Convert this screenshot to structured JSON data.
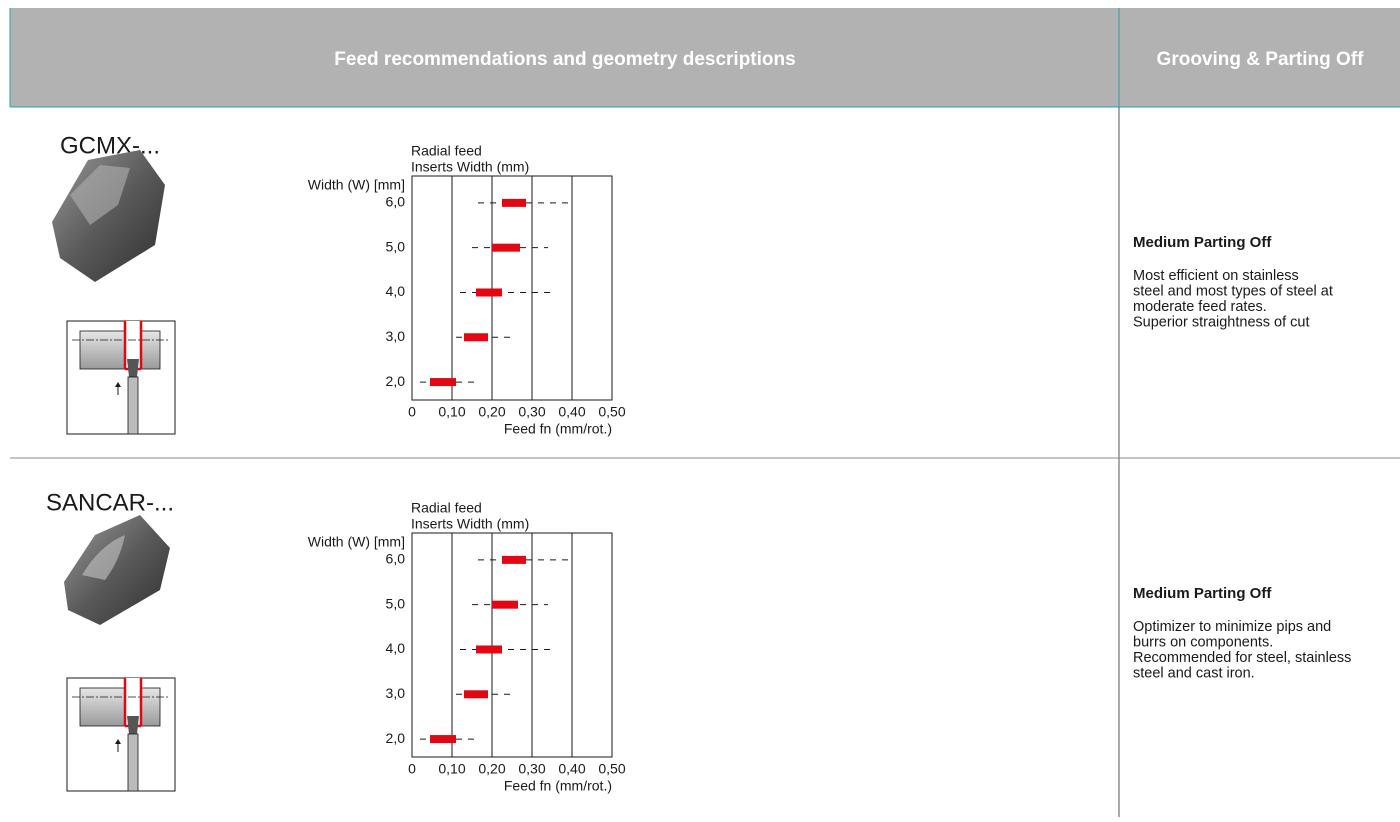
{
  "header": {
    "title": "Feed recommendations and geometry descriptions",
    "section": "Grooving & Parting Off"
  },
  "rows": [
    {
      "name": "GCMX-...",
      "chart_data": {
        "type": "range",
        "title": "Radial feed",
        "subtitle": "Inserts Width (mm)",
        "y_label": "Width (W) [mm]",
        "x_label": "Feed fn (mm/rot.)",
        "categories": [
          "6,0",
          "5,0",
          "4,0",
          "3,0",
          "2,0"
        ],
        "range_min": [
          0.165,
          0.15,
          0.12,
          0.11,
          0.02
        ],
        "range_max": [
          0.4,
          0.34,
          0.345,
          0.25,
          0.17
        ],
        "rec_min": [
          0.225,
          0.2,
          0.16,
          0.13,
          0.045
        ],
        "rec_max": [
          0.285,
          0.27,
          0.225,
          0.19,
          0.11
        ],
        "rec_color": "#e30613",
        "range_color": "#1a1a1a",
        "xlim": [
          0,
          0.5
        ],
        "xticks": [
          0,
          {
            "value": 0.1,
            "label": "0,10"
          },
          {
            "value": 0.2,
            "label": "0,20"
          },
          {
            "value": 0.3,
            "label": "0,30"
          },
          {
            "value": 0.4,
            "label": "0,40"
          },
          {
            "value": 0.5,
            "label": "0,50"
          }
        ],
        "grid": true
      },
      "description": {
        "title": "Medium Parting Off",
        "lines": [
          "Most efficient on stainless",
          "steel and most types of steel at",
          "moderate feed rates.",
          "Superior straightness of cut"
        ]
      }
    },
    {
      "name": "SANCAR-...",
      "chart_data": {
        "type": "range",
        "title": "Radial feed",
        "subtitle": "Inserts Width (mm)",
        "y_label": "Width (W) [mm]",
        "x_label": "Feed fn (mm/rot.)",
        "categories": [
          "6,0",
          "5,0",
          "4,0",
          "3,0",
          "2,0"
        ],
        "range_min": [
          0.165,
          0.15,
          0.12,
          0.11,
          0.02
        ],
        "range_max": [
          0.4,
          0.34,
          0.345,
          0.25,
          0.17
        ],
        "rec_min": [
          0.225,
          0.2,
          0.16,
          0.13,
          0.045
        ],
        "rec_max": [
          0.285,
          0.265,
          0.225,
          0.19,
          0.11
        ],
        "rec_color": "#e30613",
        "range_color": "#1a1a1a",
        "xlim": [
          0,
          0.5
        ],
        "xticks": [
          0,
          {
            "value": 0.1,
            "label": "0,10"
          },
          {
            "value": 0.2,
            "label": "0,20"
          },
          {
            "value": 0.3,
            "label": "0,30"
          },
          {
            "value": 0.4,
            "label": "0,40"
          },
          {
            "value": 0.5,
            "label": "0,50"
          }
        ],
        "grid": true
      },
      "description": {
        "title": "Medium Parting Off",
        "lines": [
          "Optimizer to minimize pips and",
          "burrs on components.",
          "Recommended for steel, stainless",
          "steel and cast iron."
        ]
      }
    }
  ]
}
